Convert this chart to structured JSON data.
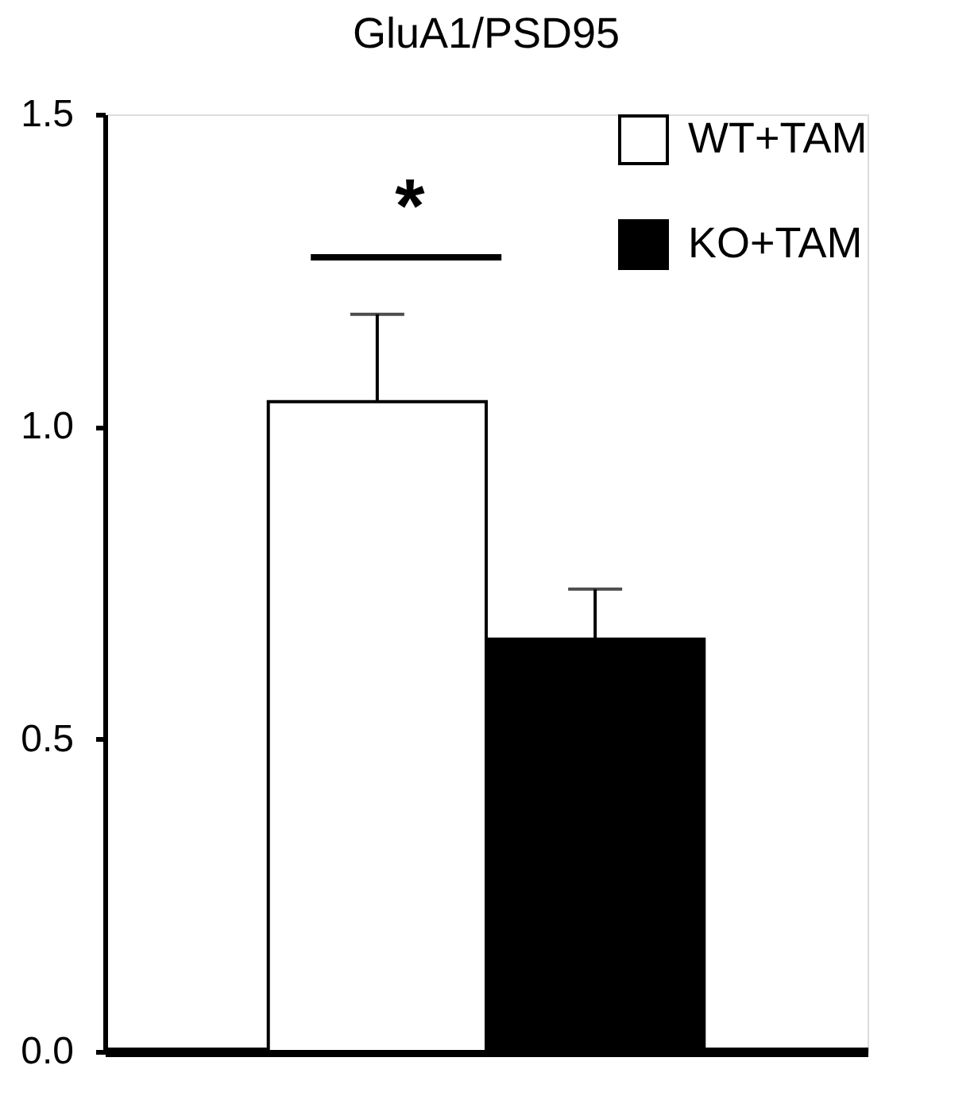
{
  "chart_data": {
    "type": "bar",
    "title": "GluA1/PSD95",
    "categories": [
      null
    ],
    "series": [
      {
        "name": "WT+TAM",
        "color": "#ffffff",
        "values": [
          1.04
        ],
        "errors": [
          [
            1.04,
            1.18
          ]
        ]
      },
      {
        "name": "KO+TAM",
        "color": "#000000",
        "values": [
          0.66
        ],
        "errors": [
          [
            0.66,
            0.74
          ]
        ]
      }
    ],
    "ylim": [
      0,
      1.5
    ],
    "yticks": [
      {
        "value": 0,
        "label": "0.0"
      },
      {
        "value": 0.5,
        "label": "0.5"
      },
      {
        "value": 1,
        "label": "1.0"
      },
      {
        "value": 1.5,
        "label": "1.5"
      }
    ],
    "annotations": [
      "*"
    ],
    "legend": "top right",
    "grid": false
  }
}
